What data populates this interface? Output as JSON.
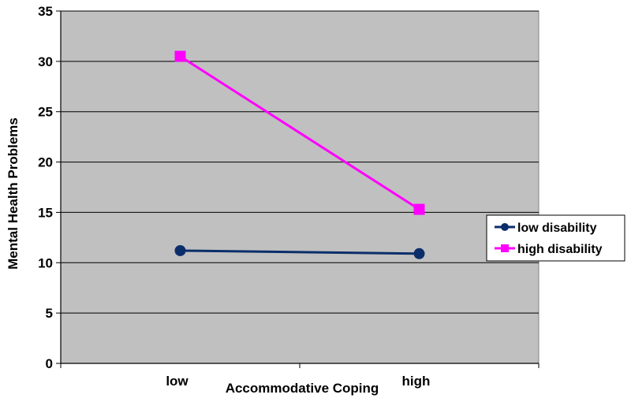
{
  "chart_data": {
    "type": "line",
    "title": "",
    "xlabel": "Accommodative Coping",
    "ylabel": "Mental Health Problems",
    "categories": [
      "low",
      "high"
    ],
    "ylim": [
      0,
      35
    ],
    "yticks": [
      0,
      5,
      10,
      15,
      20,
      25,
      30,
      35
    ],
    "grid": true,
    "legend_position": "right",
    "plot_background": "#c0c0c0",
    "series": [
      {
        "name": "low disability",
        "values": [
          11.2,
          10.9
        ],
        "color": "#0b2e6b",
        "marker": "circle"
      },
      {
        "name": "high disability",
        "values": [
          30.5,
          15.3
        ],
        "color": "#ff00ff",
        "marker": "square"
      }
    ]
  }
}
